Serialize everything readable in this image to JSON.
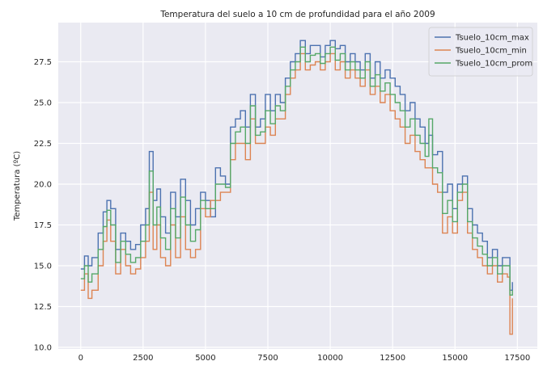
{
  "chart_data": {
    "type": "line",
    "title": "Temperatura del suelo a 10 cm de profundidad para el año 2009",
    "xlabel": "",
    "ylabel": "Temperatura (ºC)",
    "xlim": [
      -900,
      18300
    ],
    "ylim": [
      9.9,
      29.9
    ],
    "xticks": [
      0,
      2500,
      5000,
      7500,
      10000,
      12500,
      15000,
      17500
    ],
    "yticks": [
      10.0,
      12.5,
      15.0,
      17.5,
      20.0,
      22.5,
      25.0,
      27.5
    ],
    "grid": true,
    "background": "#eaeaf2",
    "legend_position": "top-right",
    "series": [
      {
        "name": "Tsuelo_10cm_max",
        "color": "#4c72b0",
        "x": [
          0,
          150,
          300,
          450,
          700,
          900,
          1050,
          1200,
          1400,
          1600,
          1800,
          2000,
          2200,
          2400,
          2600,
          2750,
          2900,
          3050,
          3200,
          3400,
          3600,
          3800,
          4000,
          4200,
          4400,
          4600,
          4800,
          5000,
          5200,
          5400,
          5600,
          5800,
          6000,
          6200,
          6400,
          6600,
          6800,
          7000,
          7200,
          7400,
          7600,
          7800,
          8000,
          8200,
          8400,
          8600,
          8800,
          9000,
          9200,
          9400,
          9600,
          9800,
          10000,
          10200,
          10400,
          10600,
          10800,
          11000,
          11200,
          11400,
          11600,
          11800,
          12000,
          12200,
          12400,
          12600,
          12800,
          13000,
          13200,
          13400,
          13600,
          13800,
          13950,
          14100,
          14300,
          14500,
          14700,
          14900,
          15100,
          15300,
          15500,
          15700,
          15900,
          16100,
          16300,
          16500,
          16700,
          16900,
          17100,
          17200,
          17300
        ],
        "y": [
          14.8,
          15.6,
          15.0,
          15.5,
          17.0,
          18.3,
          19.0,
          18.5,
          16.0,
          17.0,
          16.5,
          16.0,
          16.3,
          17.5,
          18.5,
          22.0,
          19.0,
          19.7,
          18.0,
          17.0,
          19.5,
          18.0,
          20.3,
          19.0,
          17.5,
          18.5,
          19.5,
          19.0,
          18.0,
          21.0,
          20.5,
          20.0,
          23.5,
          24.0,
          24.5,
          23.5,
          25.5,
          23.5,
          24.0,
          25.5,
          24.5,
          25.5,
          25.0,
          26.5,
          27.5,
          28.0,
          28.8,
          28.0,
          28.5,
          28.5,
          27.8,
          28.5,
          28.8,
          28.3,
          28.5,
          27.5,
          28.0,
          27.5,
          27.0,
          28.0,
          26.5,
          27.5,
          26.5,
          27.0,
          26.5,
          26.0,
          25.5,
          24.5,
          25.0,
          24.0,
          23.5,
          22.5,
          23.0,
          21.8,
          22.0,
          19.5,
          20.0,
          18.5,
          20.0,
          20.5,
          18.5,
          17.5,
          17.0,
          16.5,
          15.5,
          16.0,
          15.0,
          15.5,
          15.5,
          13.5,
          14.0
        ]
      },
      {
        "name": "Tsuelo_10cm_min",
        "color": "#dd8452",
        "x": [
          0,
          150,
          300,
          450,
          700,
          900,
          1050,
          1200,
          1400,
          1600,
          1800,
          2000,
          2200,
          2400,
          2600,
          2750,
          2900,
          3050,
          3200,
          3400,
          3600,
          3800,
          4000,
          4200,
          4400,
          4600,
          4800,
          5000,
          5200,
          5400,
          5600,
          5800,
          6000,
          6200,
          6400,
          6600,
          6800,
          7000,
          7200,
          7400,
          7600,
          7800,
          8000,
          8200,
          8400,
          8600,
          8800,
          9000,
          9200,
          9400,
          9600,
          9800,
          10000,
          10200,
          10400,
          10600,
          10800,
          11000,
          11200,
          11400,
          11600,
          11800,
          12000,
          12200,
          12400,
          12600,
          12800,
          13000,
          13200,
          13400,
          13600,
          13800,
          13950,
          14100,
          14300,
          14500,
          14700,
          14900,
          15100,
          15300,
          15500,
          15700,
          15900,
          16100,
          16300,
          16500,
          16700,
          16900,
          17100,
          17200,
          17300
        ],
        "y": [
          13.5,
          14.5,
          13.0,
          13.5,
          15.0,
          16.5,
          17.8,
          16.5,
          14.5,
          16.0,
          15.0,
          14.5,
          14.8,
          15.5,
          16.5,
          19.5,
          16.0,
          17.5,
          15.5,
          15.0,
          17.5,
          15.5,
          18.0,
          16.0,
          15.5,
          16.0,
          18.5,
          18.0,
          19.0,
          19.0,
          19.5,
          19.5,
          21.5,
          22.5,
          22.5,
          21.5,
          24.0,
          22.5,
          22.5,
          23.5,
          23.0,
          24.0,
          24.0,
          25.5,
          26.5,
          27.0,
          28.0,
          27.0,
          27.3,
          27.5,
          27.0,
          27.5,
          28.0,
          27.0,
          27.5,
          26.5,
          27.0,
          26.5,
          26.0,
          27.0,
          25.5,
          26.0,
          25.0,
          25.5,
          24.5,
          24.0,
          23.5,
          22.5,
          23.0,
          22.0,
          21.5,
          21.0,
          21.0,
          20.0,
          19.5,
          17.0,
          18.0,
          17.0,
          19.0,
          19.5,
          17.0,
          16.0,
          15.5,
          15.0,
          14.5,
          15.0,
          14.0,
          14.5,
          14.3,
          10.8,
          13.0
        ]
      },
      {
        "name": "Tsuelo_10cm_prom",
        "color": "#55a868",
        "x": [
          0,
          150,
          300,
          450,
          700,
          900,
          1050,
          1200,
          1400,
          1600,
          1800,
          2000,
          2200,
          2400,
          2600,
          2750,
          2900,
          3050,
          3200,
          3400,
          3600,
          3800,
          4000,
          4200,
          4400,
          4600,
          4800,
          5000,
          5200,
          5400,
          5600,
          5800,
          6000,
          6200,
          6400,
          6600,
          6800,
          7000,
          7200,
          7400,
          7600,
          7800,
          8000,
          8200,
          8400,
          8600,
          8800,
          9000,
          9200,
          9400,
          9600,
          9800,
          10000,
          10200,
          10400,
          10600,
          10800,
          11000,
          11200,
          11400,
          11600,
          11800,
          12000,
          12200,
          12400,
          12600,
          12800,
          13000,
          13200,
          13400,
          13600,
          13800,
          13950,
          14100,
          14300,
          14500,
          14700,
          14900,
          15100,
          15300,
          15500,
          15700,
          15900,
          16100,
          16300,
          16500,
          16700,
          16900,
          17100,
          17200,
          17300
        ],
        "y": [
          14.2,
          15.0,
          14.0,
          14.5,
          16.0,
          17.4,
          18.4,
          17.5,
          15.2,
          16.5,
          15.7,
          15.2,
          15.5,
          16.5,
          17.5,
          20.8,
          17.5,
          18.6,
          16.7,
          16.0,
          18.5,
          16.7,
          19.2,
          17.5,
          16.5,
          17.2,
          19.0,
          18.5,
          18.5,
          20.0,
          20.0,
          19.8,
          22.5,
          23.2,
          23.5,
          22.5,
          24.8,
          23.0,
          23.2,
          24.5,
          23.7,
          24.8,
          24.5,
          26.0,
          27.0,
          27.5,
          28.4,
          27.5,
          27.9,
          28.0,
          27.4,
          28.0,
          28.4,
          27.6,
          28.0,
          27.0,
          27.5,
          27.0,
          26.5,
          27.5,
          26.0,
          26.7,
          25.7,
          26.2,
          25.5,
          25.0,
          24.5,
          23.5,
          24.0,
          23.0,
          22.5,
          21.7,
          24.0,
          21.0,
          20.7,
          18.2,
          19.0,
          17.7,
          19.5,
          20.0,
          17.7,
          16.7,
          16.2,
          15.7,
          15.0,
          15.5,
          14.5,
          15.0,
          15.0,
          13.2,
          13.5
        ]
      }
    ]
  }
}
